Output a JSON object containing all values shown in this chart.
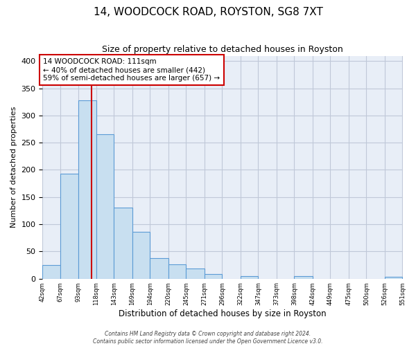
{
  "title": "14, WOODCOCK ROAD, ROYSTON, SG8 7XT",
  "subtitle": "Size of property relative to detached houses in Royston",
  "xlabel": "Distribution of detached houses by size in Royston",
  "ylabel": "Number of detached properties",
  "bar_color": "#c8dff0",
  "bar_edge_color": "#5b9bd5",
  "bin_edges": [
    42,
    67,
    93,
    118,
    143,
    169,
    194,
    220,
    245,
    271,
    296,
    322,
    347,
    373,
    398,
    424,
    449,
    475,
    500,
    526,
    551
  ],
  "bar_heights": [
    25,
    193,
    328,
    265,
    130,
    86,
    38,
    26,
    18,
    8,
    0,
    4,
    0,
    0,
    4,
    0,
    0,
    0,
    0,
    3
  ],
  "tick_labels": [
    "42sqm",
    "67sqm",
    "93sqm",
    "118sqm",
    "143sqm",
    "169sqm",
    "194sqm",
    "220sqm",
    "245sqm",
    "271sqm",
    "296sqm",
    "322sqm",
    "347sqm",
    "373sqm",
    "398sqm",
    "424sqm",
    "449sqm",
    "475sqm",
    "500sqm",
    "526sqm",
    "551sqm"
  ],
  "property_size": 111,
  "property_line_color": "#cc0000",
  "annotation_text": "14 WOODCOCK ROAD: 111sqm\n← 40% of detached houses are smaller (442)\n59% of semi-detached houses are larger (657) →",
  "annotation_box_color": "#ffffff",
  "annotation_box_edge": "#cc0000",
  "ylim": [
    0,
    410
  ],
  "yticks": [
    0,
    50,
    100,
    150,
    200,
    250,
    300,
    350,
    400
  ],
  "footer_text": "Contains HM Land Registry data © Crown copyright and database right 2024.\nContains public sector information licensed under the Open Government Licence v3.0.",
  "background_color": "#ffffff",
  "plot_bg_color": "#e8eef7",
  "grid_color": "#c0c8d8"
}
